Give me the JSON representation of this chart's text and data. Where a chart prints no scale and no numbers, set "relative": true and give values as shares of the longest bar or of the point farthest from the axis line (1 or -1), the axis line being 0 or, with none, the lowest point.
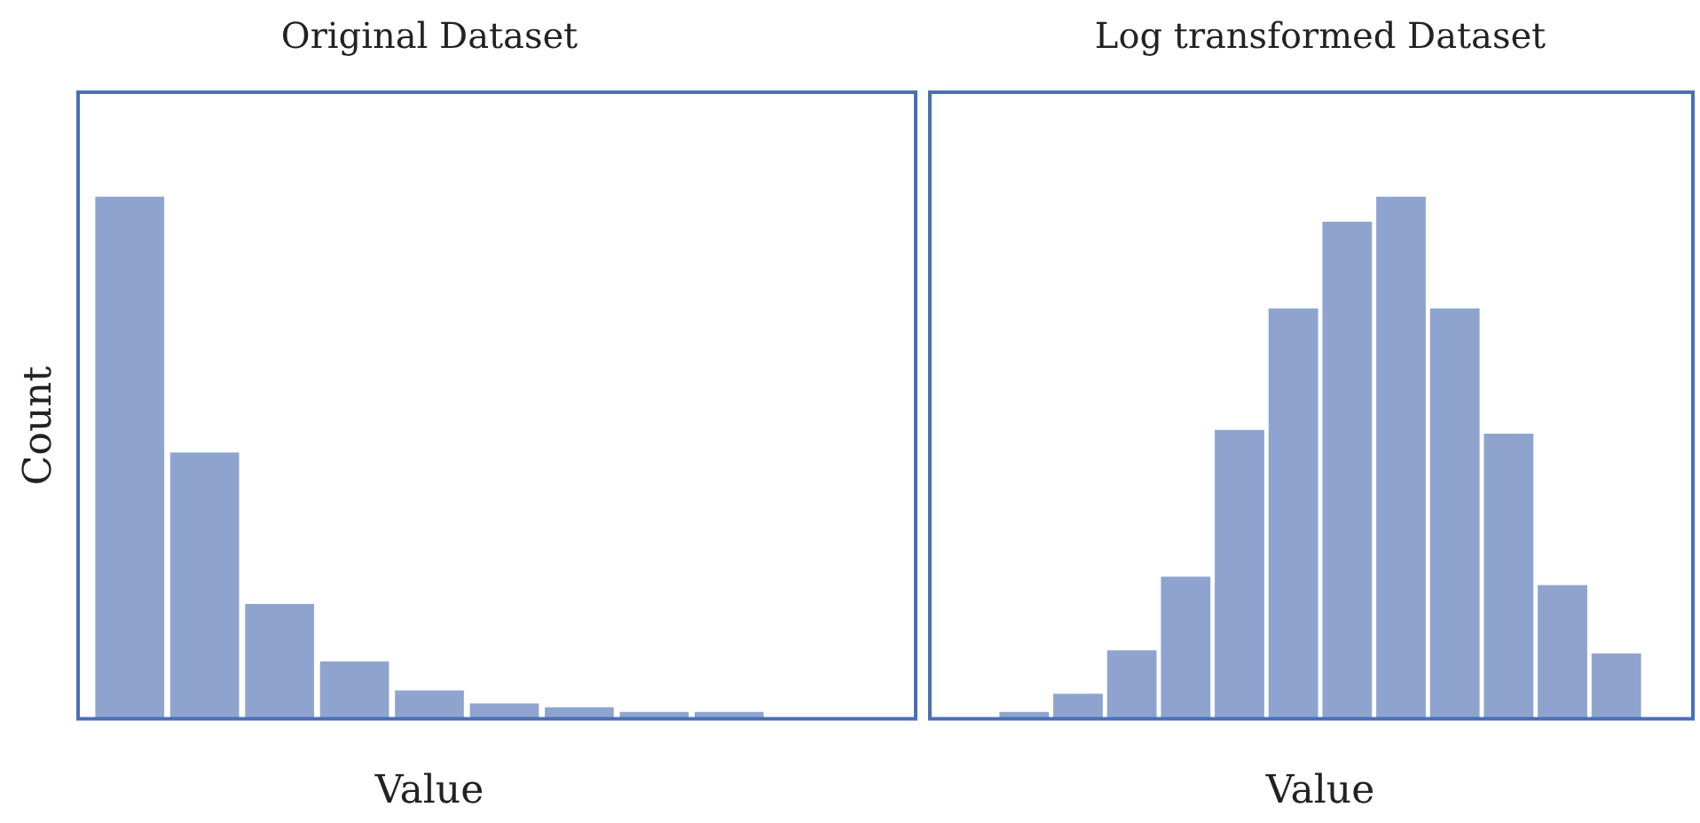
{
  "chart_data": [
    {
      "type": "bar",
      "title": "Original Dataset",
      "xlabel": "Value",
      "ylabel": "Count",
      "relative": true,
      "color": "#8ea4cf",
      "categories": [
        null,
        null,
        null,
        null,
        null,
        null,
        null,
        null,
        null
      ],
      "values": [
        1,
        0.51,
        0.22,
        0.11,
        0.054,
        0.029,
        0.022,
        0.013,
        0.013
      ]
    },
    {
      "type": "bar",
      "title": "Log transformed Dataset",
      "xlabel": "Value",
      "relative": true,
      "color": "#8ea4cf",
      "categories": [
        null,
        null,
        null,
        null,
        null,
        null,
        null,
        null,
        null,
        null,
        null,
        null
      ],
      "values": [
        0.013,
        0.048,
        0.131,
        0.272,
        0.553,
        0.786,
        0.952,
        1,
        0.786,
        0.546,
        0.256,
        0.125
      ]
    }
  ]
}
